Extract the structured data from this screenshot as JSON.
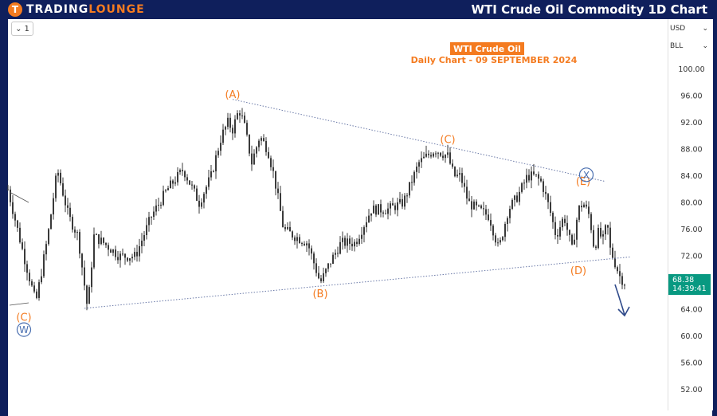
{
  "header": {
    "logo_mark": "T",
    "logo_word1": "TRADING",
    "logo_word2": "LOUNGE",
    "chart_heading": "WTI Crude Oil Commodity 1D Chart"
  },
  "toolbar": {
    "interval_value": "1",
    "interval_icon": "chevron-down-icon"
  },
  "axis_controls": {
    "currency": "USD",
    "unit": "BLL"
  },
  "price_tag": {
    "price": "68.38",
    "countdown": "14:39:41",
    "color": "#089981"
  },
  "colors": {
    "brand_navy": "#0f1f5c",
    "brand_orange": "#f47b20",
    "candle": "#3a3a3a",
    "wave_circle": "#4a6fb0",
    "arrow": "#2f4a8a"
  },
  "chart_data": {
    "type": "candlestick",
    "title": "WTI Crude Oil",
    "subtitle": "Daily Chart - 09 SEPTEMBER 2024",
    "xlabel": "",
    "ylabel": "",
    "ylim": [
      48,
      102
    ],
    "yticks": [
      "100.00",
      "96.00",
      "92.00",
      "88.00",
      "84.00",
      "80.00",
      "76.00",
      "72.00",
      "68.00",
      "64.00",
      "60.00",
      "56.00",
      "52.00"
    ],
    "grid": false,
    "series": [
      {
        "name": "",
        "x": [
          0,
          20,
          35,
          50,
          62,
          76,
          88,
          100,
          108,
          120,
          140,
          160,
          180,
          200,
          220,
          240,
          255,
          268,
          276,
          282,
          290,
          296,
          306,
          316,
          326,
          334,
          346,
          360,
          376,
          392,
          404,
          418,
          436,
          456,
          476,
          496,
          516,
          536,
          552,
          560,
          568,
          578,
          590,
          604,
          616,
          628,
          640,
          652,
          662,
          670,
          680,
          688,
          698,
          708,
          716,
          722,
          730,
          736,
          742,
          746,
          752,
          756,
          762,
          768,
          774
        ],
        "close": [
          82,
          72,
          65,
          75,
          85,
          78,
          75,
          64,
          75,
          74,
          72,
          72,
          78,
          82,
          85,
          80,
          84,
          90,
          92,
          91,
          94,
          92,
          86,
          90,
          88,
          84,
          76,
          75,
          74,
          68,
          71,
          74,
          74,
          79,
          79,
          80,
          86,
          88,
          87,
          84,
          84,
          80,
          79,
          78,
          73,
          79,
          81,
          84,
          84,
          83,
          79,
          75,
          78,
          73,
          79,
          80,
          78,
          73,
          76,
          74,
          77,
          73,
          71,
          69,
          68
        ]
      }
    ],
    "annotations": [
      {
        "text": "(A)",
        "x": 282,
        "y": 95
      },
      {
        "text": "(B)",
        "x": 392,
        "y": 67.5
      },
      {
        "text": "(C)",
        "x": 552,
        "y": 88
      },
      {
        "text": "(D)",
        "x": 716,
        "y": 71
      },
      {
        "text": "(E)",
        "x": 722,
        "y": 82
      },
      {
        "text": "(C)",
        "x": 20,
        "y": 64
      },
      {
        "text": "W",
        "x": 20,
        "y": 61,
        "circled": true
      },
      {
        "text": "X",
        "x": 726,
        "y": 84.2,
        "circled": true
      }
    ],
    "trendlines": [
      {
        "name": "upper",
        "from": [
          282,
          95.5
        ],
        "to": [
          750,
          83.2
        ]
      },
      {
        "name": "lower",
        "from": [
          96,
          64.2
        ],
        "to": [
          782,
          71.9
        ]
      }
    ],
    "projection": "down",
    "last_price": 68.38
  }
}
